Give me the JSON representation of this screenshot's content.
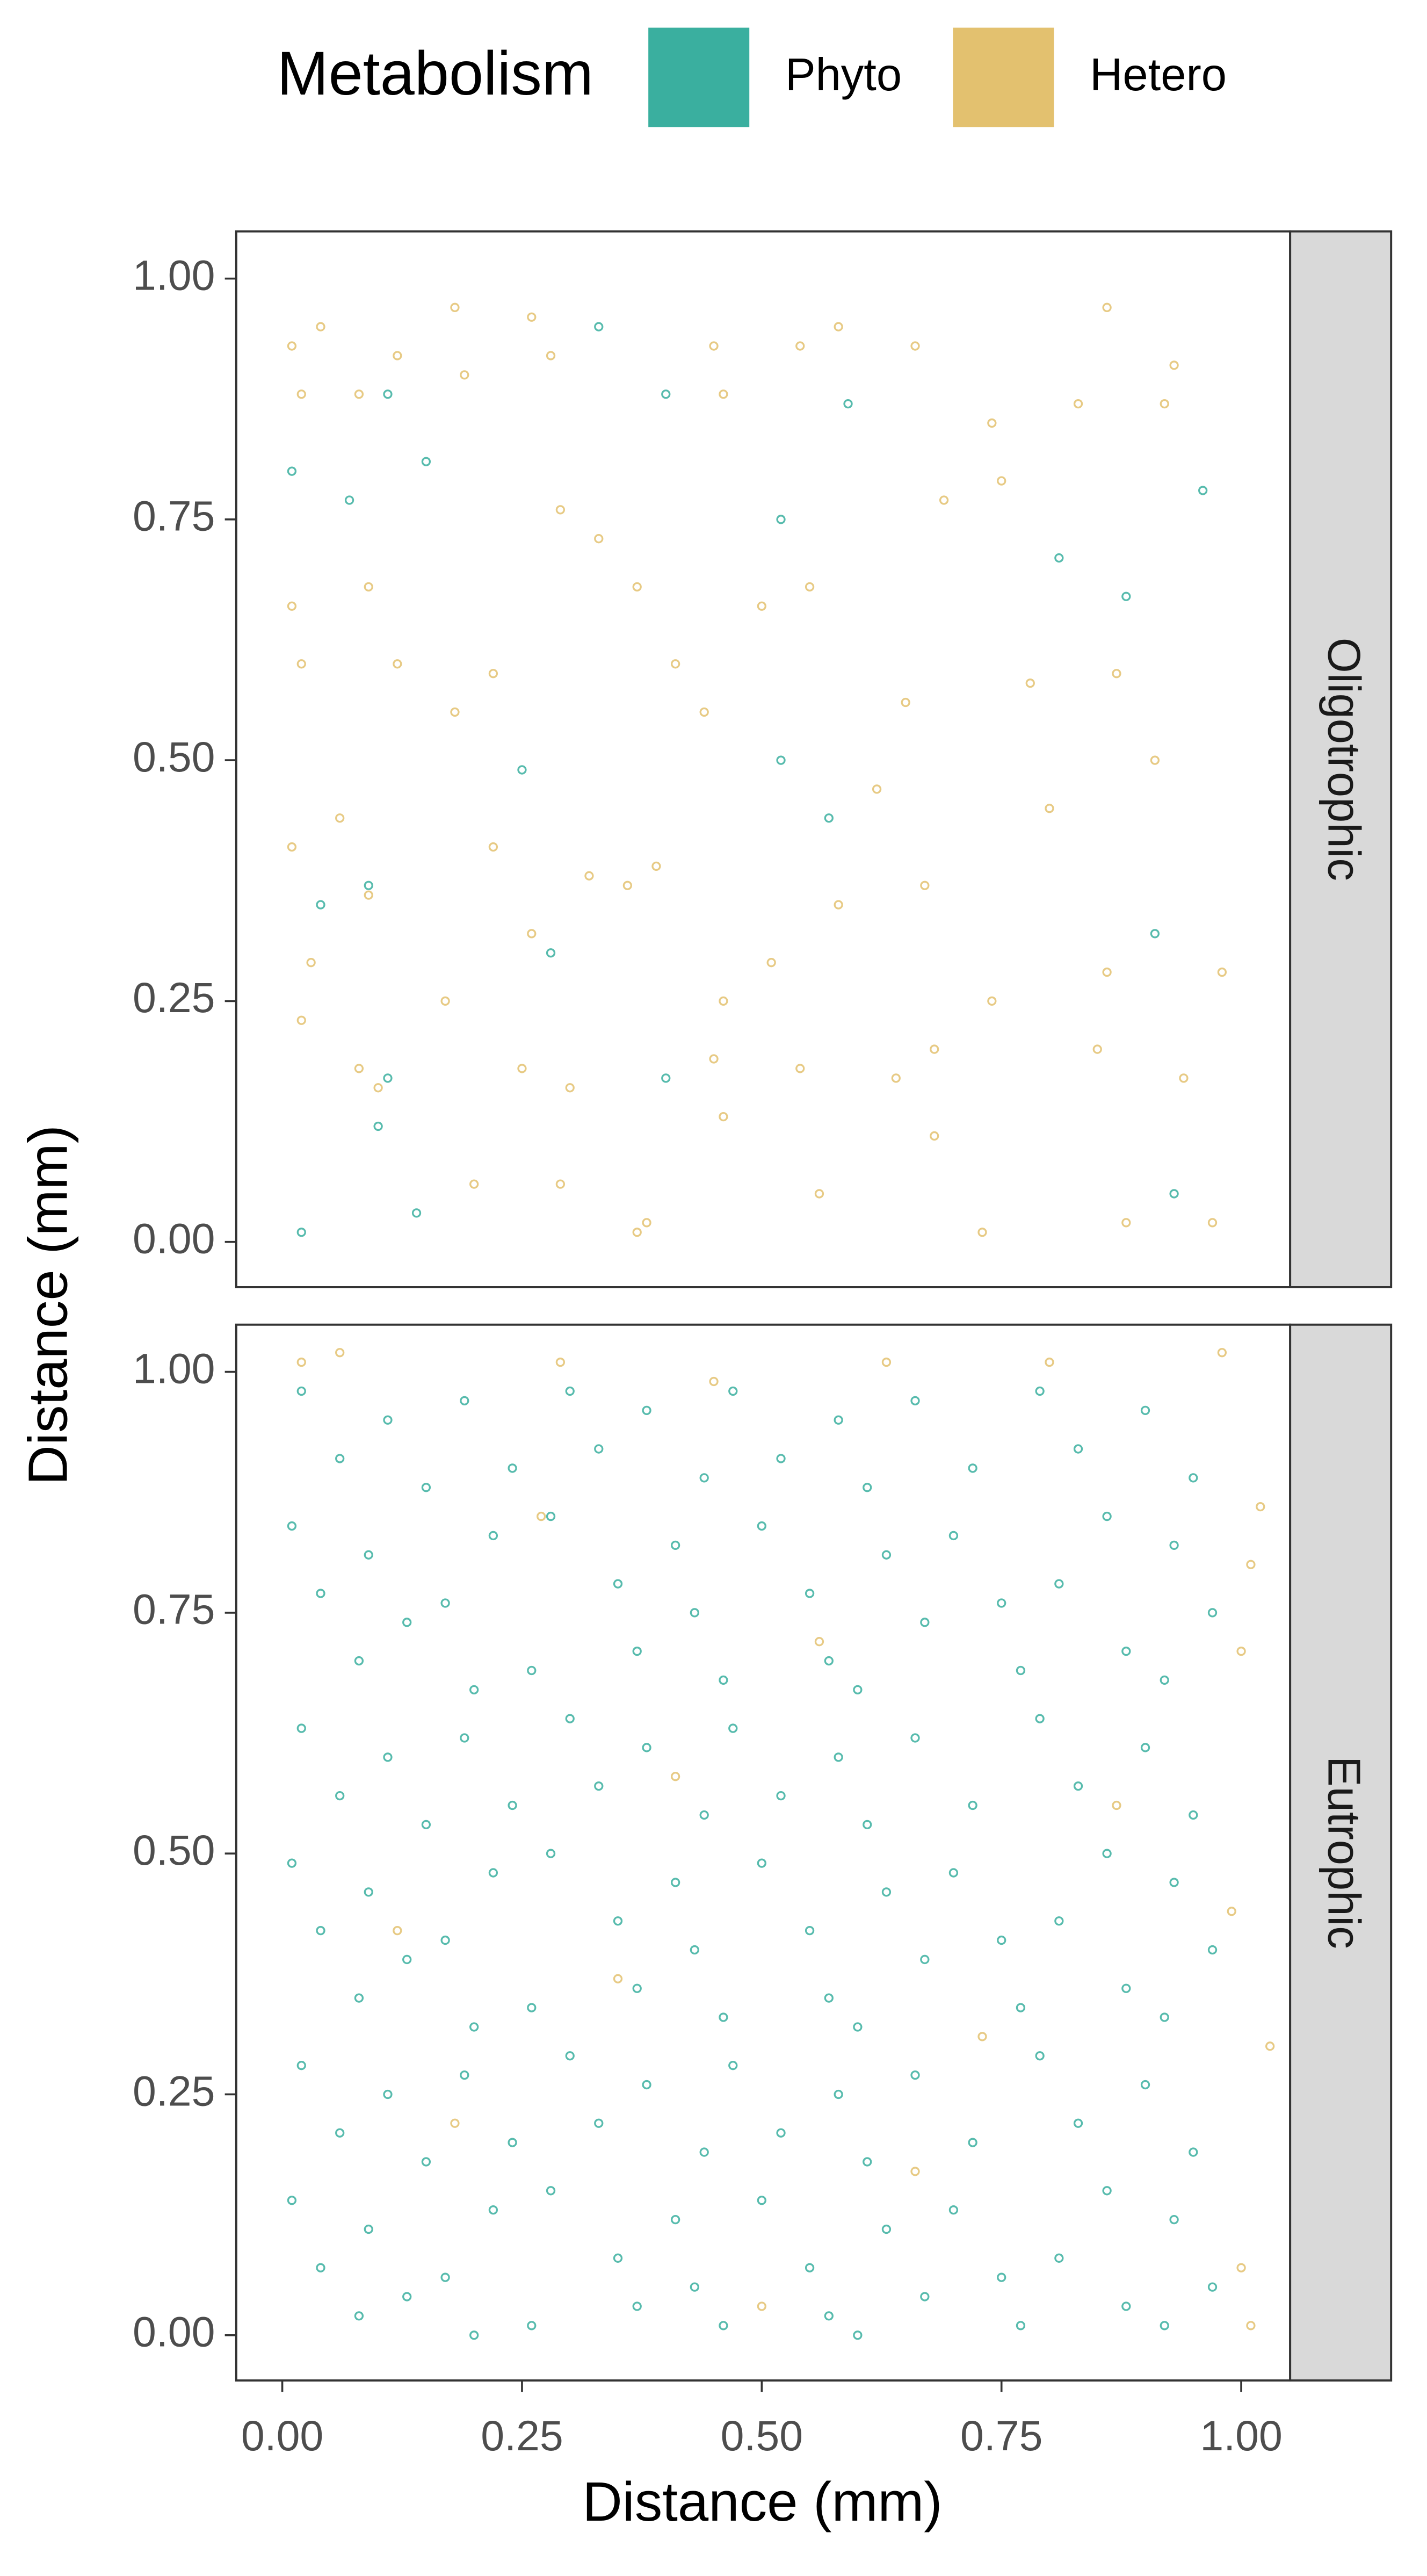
{
  "legend_title": "Metabolism",
  "x_label": "Distance (mm)",
  "y_label": "Distance (mm)",
  "chart_data": [
    {
      "type": "scatter",
      "facet": "Oligotrophic",
      "grid": false,
      "xlim": [
        -0.048,
        1.051
      ],
      "ylim": [
        -0.047,
        1.049
      ],
      "yticks": [
        {
          "value": 0,
          "label": "0.00"
        },
        {
          "value": 0.25,
          "label": "0.25"
        },
        {
          "value": 0.5,
          "label": "0.50"
        },
        {
          "value": 0.75,
          "label": "0.75"
        },
        {
          "value": 1,
          "label": "1.00"
        }
      ],
      "series": [
        {
          "name": "Phyto",
          "color": "#3aaf9f",
          "x": [
            0.01,
            0.07,
            0.11,
            0.15,
            0.33,
            0.4,
            0.52,
            0.59,
            0.81,
            0.96,
            0.02,
            0.1,
            0.11,
            0.14,
            0.28,
            0.4,
            0.52,
            0.57,
            0.91,
            0.93,
            0.04,
            0.25,
            0.88,
            0.09
          ],
          "values": [
            0.8,
            0.77,
            0.88,
            0.81,
            0.95,
            0.88,
            0.75,
            0.87,
            0.71,
            0.78,
            0.01,
            0.12,
            0.17,
            0.03,
            0.3,
            0.17,
            0.5,
            0.44,
            0.32,
            0.05,
            0.35,
            0.49,
            0.67,
            0.37
          ]
        },
        {
          "name": "Hetero",
          "color": "#e3c16f",
          "x": [
            0.01,
            0.02,
            0.04,
            0.08,
            0.12,
            0.18,
            0.19,
            0.26,
            0.28,
            0.37,
            0.45,
            0.46,
            0.54,
            0.58,
            0.66,
            0.74,
            0.83,
            0.86,
            0.92,
            0.93,
            0.01,
            0.02,
            0.09,
            0.12,
            0.18,
            0.22,
            0.29,
            0.33,
            0.37,
            0.41,
            0.44,
            0.5,
            0.55,
            0.65,
            0.69,
            0.75,
            0.78,
            0.87,
            0.91,
            0.01,
            0.03,
            0.06,
            0.09,
            0.17,
            0.22,
            0.26,
            0.32,
            0.36,
            0.39,
            0.46,
            0.51,
            0.58,
            0.62,
            0.67,
            0.74,
            0.8,
            0.86,
            0.98,
            0.02,
            0.08,
            0.1,
            0.25,
            0.3,
            0.38,
            0.45,
            0.46,
            0.54,
            0.56,
            0.64,
            0.68,
            0.68,
            0.73,
            0.85,
            0.88,
            0.94,
            0.97,
            0.2,
            0.29
          ],
          "values": [
            0.93,
            0.88,
            0.95,
            0.88,
            0.92,
            0.97,
            0.9,
            0.96,
            0.92,
            0.01,
            0.93,
            0.88,
            0.93,
            0.95,
            0.93,
            0.85,
            0.87,
            0.97,
            0.87,
            0.91,
            0.66,
            0.6,
            0.68,
            0.6,
            0.55,
            0.59,
            0.76,
            0.73,
            0.68,
            0.6,
            0.55,
            0.66,
            0.68,
            0.56,
            0.77,
            0.79,
            0.58,
            0.59,
            0.5,
            0.41,
            0.29,
            0.44,
            0.36,
            0.25,
            0.41,
            0.32,
            0.38,
            0.37,
            0.39,
            0.25,
            0.29,
            0.35,
            0.47,
            0.37,
            0.25,
            0.45,
            0.28,
            0.28,
            0.23,
            0.18,
            0.16,
            0.18,
            0.16,
            0.02,
            0.19,
            0.13,
            0.18,
            0.05,
            0.17,
            0.2,
            0.11,
            0.01,
            0.2,
            0.02,
            0.17,
            0.02,
            0.06,
            0.06
          ]
        }
      ]
    },
    {
      "type": "scatter",
      "facet": "Eutrophic",
      "grid": false,
      "xlim": [
        -0.048,
        1.051
      ],
      "ylim": [
        -0.047,
        1.049
      ],
      "xticks": [
        {
          "value": 0,
          "label": "0.00"
        },
        {
          "value": 0.25,
          "label": "0.25"
        },
        {
          "value": 0.5,
          "label": "0.50"
        },
        {
          "value": 0.75,
          "label": "0.75"
        },
        {
          "value": 1,
          "label": "1.00"
        }
      ],
      "yticks": [
        {
          "value": 0,
          "label": "0.00"
        },
        {
          "value": 0.25,
          "label": "0.25"
        },
        {
          "value": 0.5,
          "label": "0.50"
        },
        {
          "value": 0.75,
          "label": "0.75"
        },
        {
          "value": 1,
          "label": "1.00"
        }
      ],
      "series": [
        {
          "color": "#3aaf9f",
          "x": [
            0.02,
            0.11,
            0.19,
            0.3,
            0.38,
            0.47,
            0.58,
            0.66,
            0.79,
            0.9,
            0.06,
            0.15,
            0.24,
            0.33,
            0.44,
            0.52,
            0.61,
            0.72,
            0.83,
            0.95,
            0.01,
            0.09,
            0.22,
            0.28,
            0.41,
            0.5,
            0.63,
            0.7,
            0.86,
            0.93,
            0.04,
            0.13,
            0.17,
            0.35,
            0.43,
            0.55,
            0.67,
            0.75,
            0.81,
            0.97,
            0.08,
            0.2,
            0.26,
            0.37,
            0.46,
            0.57,
            0.6,
            0.77,
            0.88,
            0.92,
            0.02,
            0.11,
            0.19,
            0.3,
            0.38,
            0.47,
            0.58,
            0.66,
            0.79,
            0.9,
            0.06,
            0.15,
            0.24,
            0.33,
            0.44,
            0.52,
            0.61,
            0.72,
            0.83,
            0.95,
            0.01,
            0.09,
            0.22,
            0.28,
            0.41,
            0.5,
            0.63,
            0.7,
            0.86,
            0.93,
            0.04,
            0.13,
            0.17,
            0.35,
            0.43,
            0.55,
            0.67,
            0.75,
            0.81,
            0.97,
            0.08,
            0.2,
            0.26,
            0.37,
            0.46,
            0.57,
            0.6,
            0.77,
            0.88,
            0.92,
            0.02,
            0.11,
            0.19,
            0.3,
            0.38,
            0.47,
            0.58,
            0.66,
            0.79,
            0.9,
            0.06,
            0.15,
            0.24,
            0.33,
            0.44,
            0.52,
            0.61,
            0.72,
            0.83,
            0.95,
            0.01,
            0.09,
            0.22,
            0.28,
            0.41,
            0.5,
            0.63,
            0.7,
            0.86,
            0.93,
            0.04,
            0.13,
            0.17,
            0.35,
            0.43,
            0.55,
            0.67,
            0.75,
            0.81,
            0.97,
            0.08,
            0.2,
            0.26,
            0.37,
            0.46,
            0.57,
            0.6,
            0.77,
            0.88,
            0.92
          ],
          "values": [
            0.98,
            0.95,
            0.97,
            0.98,
            0.96,
            0.98,
            0.95,
            0.97,
            0.98,
            0.96,
            0.91,
            0.88,
            0.9,
            0.92,
            0.89,
            0.91,
            0.88,
            0.9,
            0.92,
            0.89,
            0.84,
            0.81,
            0.83,
            0.85,
            0.82,
            0.84,
            0.81,
            0.83,
            0.85,
            0.82,
            0.77,
            0.74,
            0.76,
            0.78,
            0.75,
            0.77,
            0.74,
            0.76,
            0.78,
            0.75,
            0.7,
            0.67,
            0.69,
            0.71,
            0.68,
            0.7,
            0.67,
            0.69,
            0.71,
            0.68,
            0.63,
            0.6,
            0.62,
            0.64,
            0.61,
            0.63,
            0.6,
            0.62,
            0.64,
            0.61,
            0.56,
            0.53,
            0.55,
            0.57,
            0.54,
            0.56,
            0.53,
            0.55,
            0.57,
            0.54,
            0.49,
            0.46,
            0.48,
            0.5,
            0.47,
            0.49,
            0.46,
            0.48,
            0.5,
            0.47,
            0.42,
            0.39,
            0.41,
            0.43,
            0.4,
            0.42,
            0.39,
            0.41,
            0.43,
            0.4,
            0.35,
            0.32,
            0.34,
            0.36,
            0.33,
            0.35,
            0.32,
            0.34,
            0.36,
            0.33,
            0.28,
            0.25,
            0.27,
            0.29,
            0.26,
            0.28,
            0.25,
            0.27,
            0.29,
            0.26,
            0.21,
            0.18,
            0.2,
            0.22,
            0.19,
            0.21,
            0.18,
            0.2,
            0.22,
            0.19,
            0.14,
            0.11,
            0.13,
            0.15,
            0.12,
            0.14,
            0.11,
            0.13,
            0.15,
            0.12,
            0.07,
            0.04,
            0.06,
            0.08,
            0.05,
            0.07,
            0.04,
            0.06,
            0.08,
            0.05,
            0.02,
            0.0,
            0.01,
            0.03,
            0.01,
            0.02,
            0.0,
            0.01,
            0.03,
            0.01
          ]
        },
        {
          "color": "#e3c16f",
          "x": [
            0.02,
            0.06,
            0.29,
            0.45,
            0.63,
            0.8,
            0.98,
            1.02,
            1.01,
            1.0,
            0.99,
            1.03,
            1.0,
            1.01,
            0.35,
            0.56,
            0.41,
            0.18,
            0.66,
            0.12,
            0.87,
            0.27,
            0.5,
            0.73
          ],
          "values": [
            1.01,
            1.02,
            1.01,
            0.99,
            1.01,
            1.01,
            1.02,
            0.86,
            0.8,
            0.71,
            0.44,
            0.3,
            0.07,
            0.01,
            0.37,
            0.72,
            0.58,
            0.22,
            0.17,
            0.42,
            0.55,
            0.85,
            0.03,
            0.31
          ]
        }
      ]
    }
  ]
}
